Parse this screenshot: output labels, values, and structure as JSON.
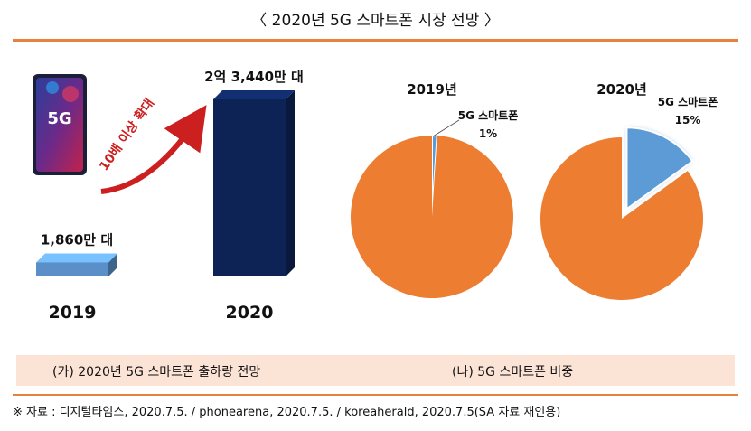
{
  "title": "〈 2020년 5G 스마트폰 시장 전망 〉",
  "captions": {
    "left": "(가) 2020년 5G 스마트폰 출하량 전망",
    "right": "(나) 5G 스마트폰 비중"
  },
  "source": "※ 자료 : 디지털타임스, 2020.7.5. / phonearena, 2020.7.5. / koreaherald, 2020.7.5(SA 자료 재인용)",
  "phone_badge": "5G",
  "colors": {
    "accent": "#e8823a",
    "bar_2019": "#5a8fc8",
    "bar_2020": "#0e2355",
    "pie_rest": "#ed7d31",
    "pie_5g": "#5b9bd5",
    "growth_arrow": "#cc1f1f",
    "caption_bg": "#fbe3d6"
  },
  "chart_data": [
    {
      "type": "bar",
      "categories": [
        "2019",
        "2020"
      ],
      "values": [
        1860,
        23440
      ],
      "value_labels": [
        "1,860만 대",
        "2억 3,440만 대"
      ],
      "annotation": "10배 이상 확대",
      "title": "",
      "xlabel": "",
      "ylabel": ""
    },
    {
      "type": "pie",
      "title": "2019년",
      "labels": [
        "5G 스마트폰",
        ""
      ],
      "values": [
        1,
        99
      ],
      "data_labels": [
        "1%"
      ],
      "highlight": "5G 스마트폰"
    },
    {
      "type": "pie",
      "title": "2020년",
      "labels": [
        "5G 스마트폰",
        ""
      ],
      "values": [
        15,
        85
      ],
      "data_labels": [
        "15%"
      ],
      "highlight": "5G 스마트폰"
    }
  ]
}
